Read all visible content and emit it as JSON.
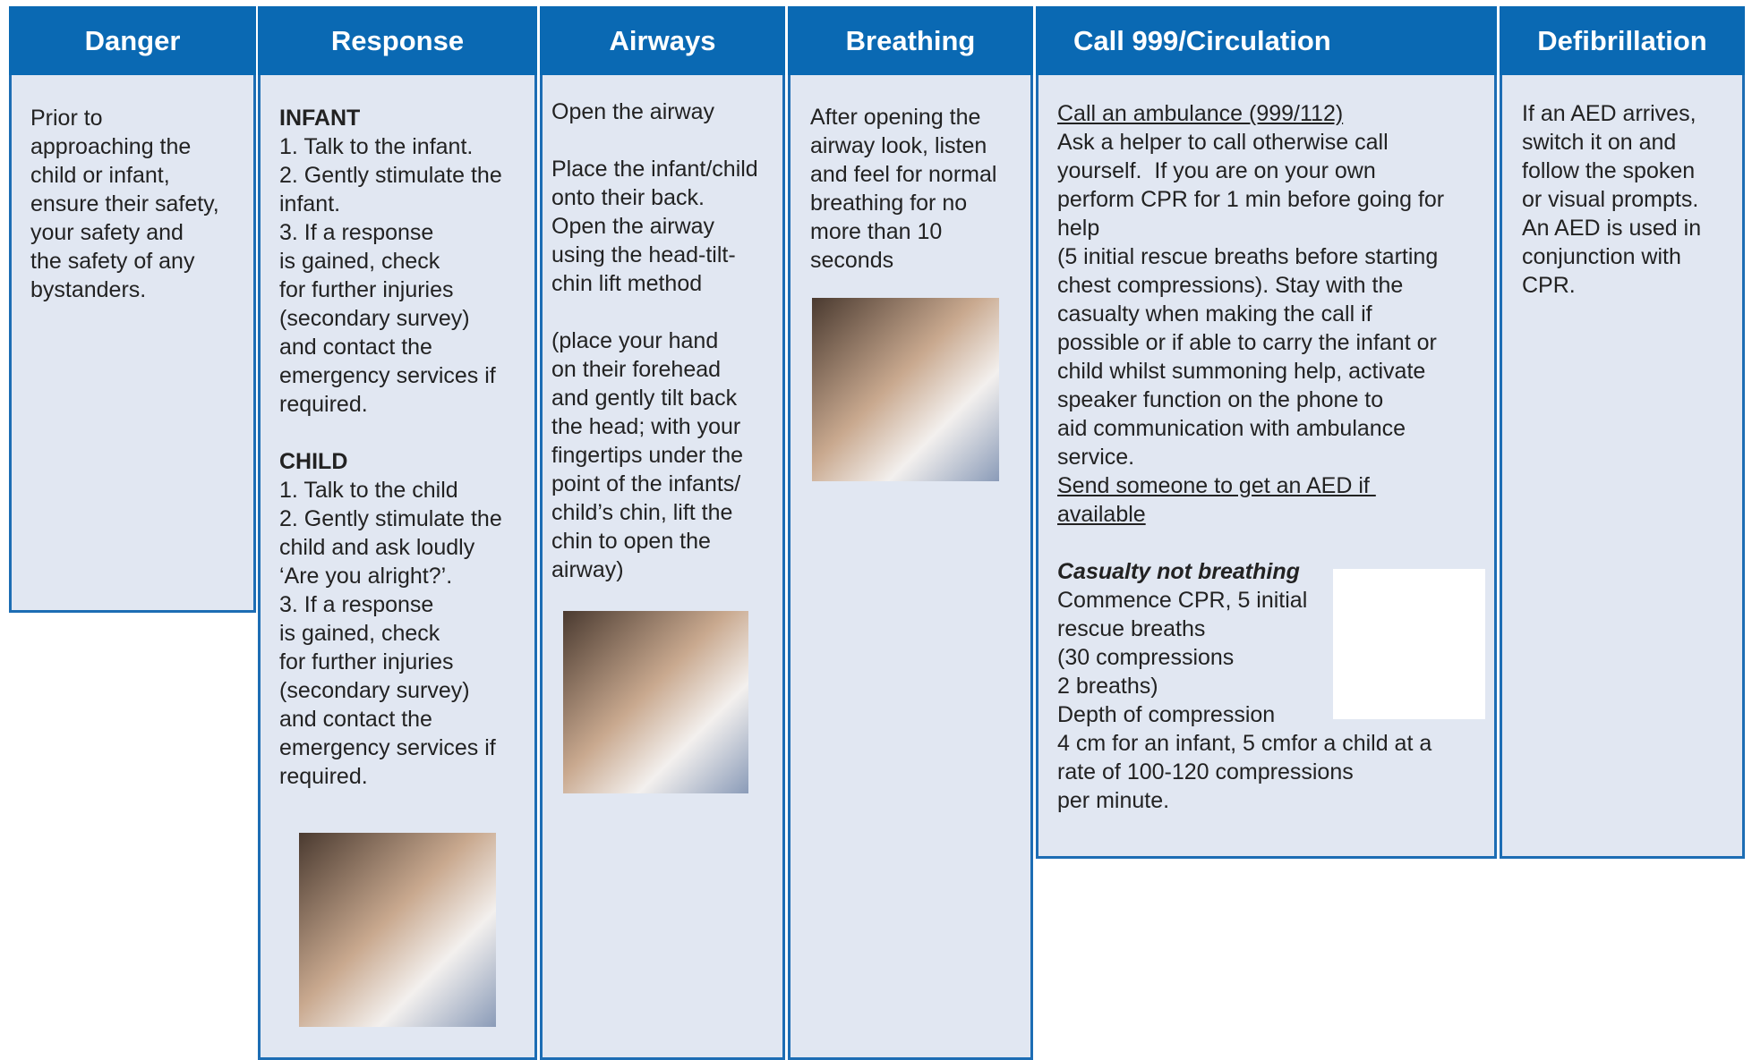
{
  "columns": [
    {
      "header": "Danger",
      "blocks": [
        [
          "Prior to",
          "approaching the",
          "child or infant,",
          "ensure their safety,",
          "your safety and",
          "the safety of any",
          "bystanders."
        ]
      ]
    },
    {
      "header": "Response",
      "blocks": [
        [
          "INFANT",
          "1. Talk to the infant.",
          "2. Gently stimulate the",
          "infant.",
          "3. If a response",
          "is gained, check",
          "for further injuries",
          "(secondary survey)",
          "and contact the",
          "emergency services if",
          "required."
        ],
        [
          "CHILD",
          "1. Talk to the child",
          "2. Gently stimulate the",
          "child and ask loudly",
          "‘Are you alright?’.",
          "3. If a response",
          "is gained, check",
          "for further injuries",
          "(secondary survey)",
          "and contact the",
          "emergency services if",
          "required."
        ]
      ]
    },
    {
      "header": "Airways",
      "blocks": [
        [
          "Open the airway"
        ],
        [
          "Place the infant/child",
          "onto their back.",
          "Open the airway",
          "using the head-tilt-",
          "chin lift method"
        ],
        [
          "(place your hand",
          "on their forehead",
          "and gently tilt back",
          "the head; with your",
          "fingertips under the",
          "point of the infants/",
          "child’s chin, lift the",
          "chin to open the",
          "airway)"
        ]
      ]
    },
    {
      "header": "Breathing",
      "blocks": [
        [
          "After opening the",
          "airway look, listen",
          "and feel for normal",
          "breathing for no",
          "more than 10",
          "seconds"
        ]
      ]
    },
    {
      "header": "Call 999/Circulation",
      "blocks": [
        [
          "Call an ambulance (999/112)",
          "Ask a helper to call otherwise call",
          "yourself.  If you are on your own",
          "perform CPR for 1 min before going for",
          "help",
          "(5 initial rescue breaths before starting",
          "chest compressions). Stay with the",
          "casualty when making the call if",
          "possible or if able to carry the infant or",
          "child whilst summoning help, activate",
          "speaker function on the phone to",
          "aid communication with ambulance",
          "service.",
          "Send someone to get an AED if ",
          "available"
        ],
        [
          "Casualty not breathing",
          "Commence CPR, 5 initial",
          "rescue breaths",
          "(30 compressions",
          "2 breaths)",
          "Depth of compression",
          "4 cm for an infant, 5 cmfor a child at a",
          "rate of 100-120 compressions",
          "per minute."
        ]
      ]
    },
    {
      "header": "Defibrillation",
      "blocks": [
        [
          "If an AED arrives,",
          "switch it on and",
          "follow the spoken",
          "or visual prompts.",
          "An AED is used in",
          "conjunction with",
          "CPR."
        ]
      ]
    }
  ]
}
